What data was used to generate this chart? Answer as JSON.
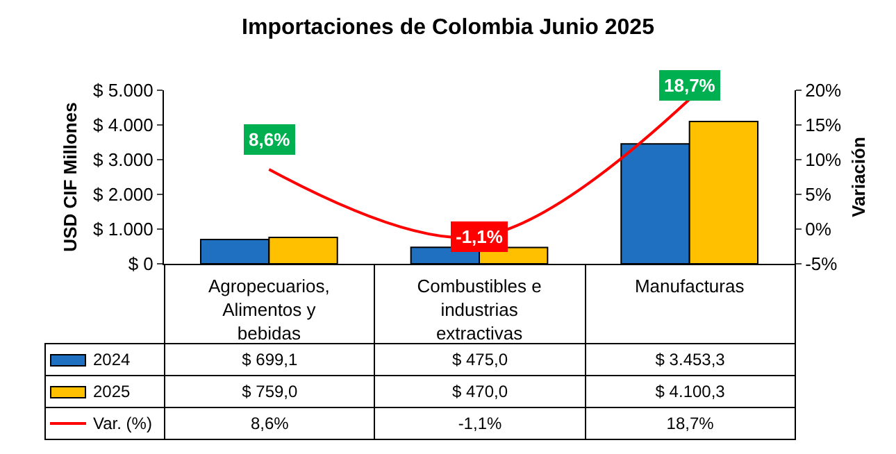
{
  "chart_data": {
    "type": "bar",
    "title": "Importaciones de Colombia Junio 2025",
    "ylabel": "USD CIF Millones",
    "y2label": "Variación",
    "categories": [
      "Agropecuarios, Alimentos y bebidas",
      "Combustibles e industrias extractivas",
      "Manufacturas"
    ],
    "series": [
      {
        "name": "2024",
        "color": "#1f70c1",
        "values": [
          699.1,
          475.0,
          3453.3
        ],
        "value_labels": [
          "$ 699,1",
          "$ 475,0",
          "$ 3.453,3"
        ]
      },
      {
        "name": "2025",
        "color": "#ffc000",
        "values": [
          759.0,
          470.0,
          4100.3
        ],
        "value_labels": [
          "$ 759,0",
          "$ 470,0",
          "$ 4.100,3"
        ]
      },
      {
        "name": "Var. (%)",
        "type": "line",
        "axis": "y2",
        "color": "#ff0000",
        "values": [
          8.6,
          -1.1,
          18.7
        ],
        "value_labels": [
          "8,6%",
          "-1,1%",
          "18,7%"
        ]
      }
    ],
    "ylim": [
      0,
      5000
    ],
    "yticks": [
      {
        "value": 0,
        "label": "$ 0"
      },
      {
        "value": 1000,
        "label": "$ 1.000"
      },
      {
        "value": 2000,
        "label": "$ 2.000"
      },
      {
        "value": 3000,
        "label": "$ 3.000"
      },
      {
        "value": 4000,
        "label": "$ 4.000"
      },
      {
        "value": 5000,
        "label": "$ 5.000"
      }
    ],
    "y2lim": [
      -5,
      20
    ],
    "y2ticks": [
      {
        "value": -5,
        "label": "-5%"
      },
      {
        "value": 0,
        "label": "0%"
      },
      {
        "value": 5,
        "label": "5%"
      },
      {
        "value": 10,
        "label": "10%"
      },
      {
        "value": 15,
        "label": "15%"
      },
      {
        "value": 20,
        "label": "20%"
      }
    ],
    "grid": false,
    "legend": "bottom"
  }
}
